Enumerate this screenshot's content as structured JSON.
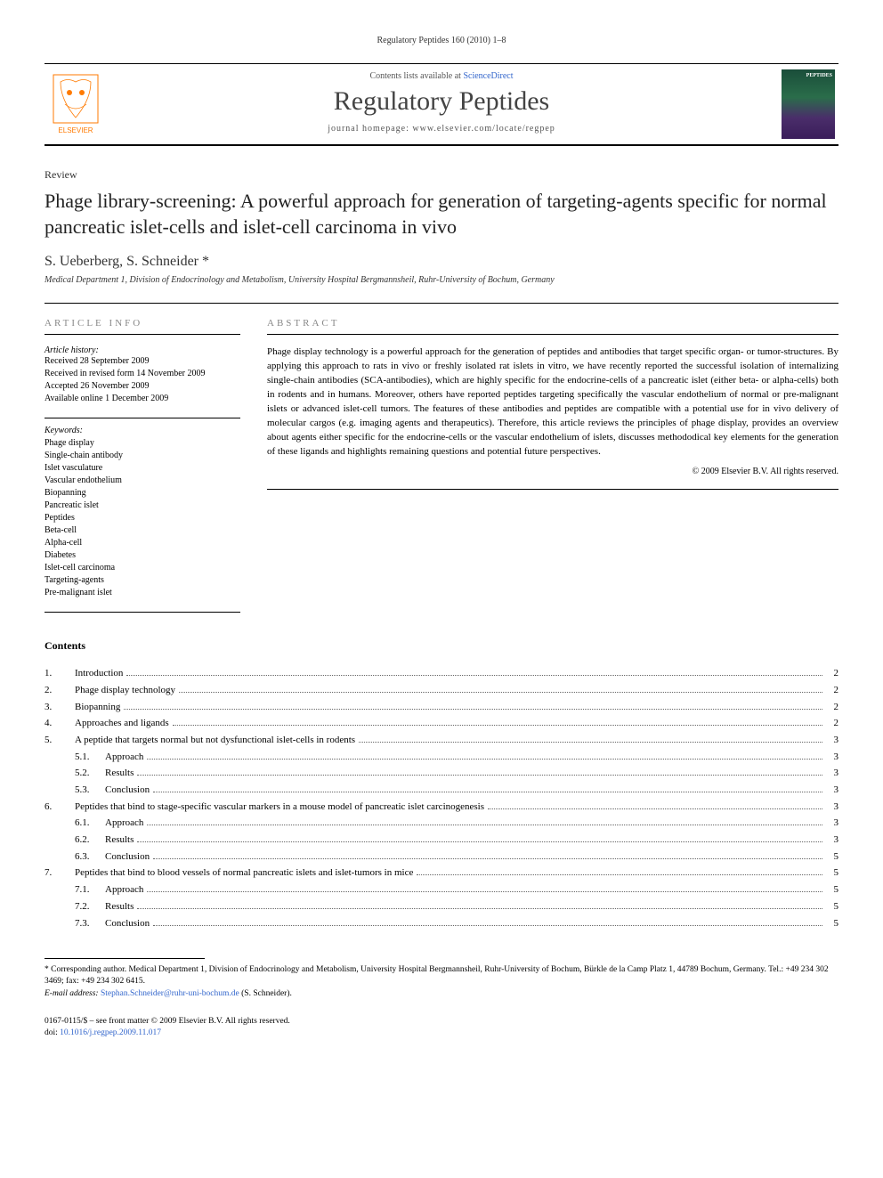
{
  "running_header": "Regulatory Peptides 160 (2010) 1–8",
  "header": {
    "contents_prefix": "Contents lists available at ",
    "contents_link": "ScienceDirect",
    "journal_name": "Regulatory Peptides",
    "homepage_prefix": "journal homepage: ",
    "homepage_url": "www.elsevier.com/locate/regpep",
    "publisher_label": "ELSEVIER",
    "cover_label": "PEPTIDES"
  },
  "article": {
    "type": "Review",
    "title": "Phage library-screening: A powerful approach for generation of targeting-agents specific for normal pancreatic islet-cells and islet-cell carcinoma in vivo",
    "authors": "S. Ueberberg, S. Schneider *",
    "affiliation": "Medical Department 1, Division of Endocrinology and Metabolism, University Hospital Bergmannsheil, Ruhr-University of Bochum, Germany"
  },
  "info": {
    "heading": "ARTICLE INFO",
    "history_label": "Article history:",
    "history": [
      "Received 28 September 2009",
      "Received in revised form 14 November 2009",
      "Accepted 26 November 2009",
      "Available online 1 December 2009"
    ],
    "keywords_label": "Keywords:",
    "keywords": [
      "Phage display",
      "Single-chain antibody",
      "Islet vasculature",
      "Vascular endothelium",
      "Biopanning",
      "Pancreatic islet",
      "Peptides",
      "Beta-cell",
      "Alpha-cell",
      "Diabetes",
      "Islet-cell carcinoma",
      "Targeting-agents",
      "Pre-malignant islet"
    ]
  },
  "abstract": {
    "heading": "ABSTRACT",
    "text": "Phage display technology is a powerful approach for the generation of peptides and antibodies that target specific organ- or tumor-structures. By applying this approach to rats in vivo or freshly isolated rat islets in vitro, we have recently reported the successful isolation of internalizing single-chain antibodies (SCA-antibodies), which are highly specific for the endocrine-cells of a pancreatic islet (either beta- or alpha-cells) both in rodents and in humans. Moreover, others have reported peptides targeting specifically the vascular endothelium of normal or pre-malignant islets or advanced islet-cell tumors. The features of these antibodies and peptides are compatible with a potential use for in vivo delivery of molecular cargos (e.g. imaging agents and therapeutics). Therefore, this article reviews the principles of phage display, provides an overview about agents either specific for the endocrine-cells or the vascular endothelium of islets, discusses methododical key elements for the generation of these ligands and highlights remaining questions and potential future perspectives.",
    "copyright": "© 2009 Elsevier B.V. All rights reserved."
  },
  "contents": {
    "heading": "Contents",
    "items": [
      {
        "num": "1.",
        "title": "Introduction",
        "page": "2",
        "sub": false
      },
      {
        "num": "2.",
        "title": "Phage display technology",
        "page": "2",
        "sub": false
      },
      {
        "num": "3.",
        "title": "Biopanning",
        "page": "2",
        "sub": false
      },
      {
        "num": "4.",
        "title": "Approaches and ligands",
        "page": "2",
        "sub": false
      },
      {
        "num": "5.",
        "title": "A peptide that targets normal but not dysfunctional islet-cells in rodents",
        "page": "3",
        "sub": false
      },
      {
        "num": "5.1.",
        "title": "Approach",
        "page": "3",
        "sub": true
      },
      {
        "num": "5.2.",
        "title": "Results",
        "page": "3",
        "sub": true
      },
      {
        "num": "5.3.",
        "title": "Conclusion",
        "page": "3",
        "sub": true
      },
      {
        "num": "6.",
        "title": "Peptides that bind to stage-specific vascular markers in a mouse model of pancreatic islet carcinogenesis",
        "page": "3",
        "sub": false
      },
      {
        "num": "6.1.",
        "title": "Approach",
        "page": "3",
        "sub": true
      },
      {
        "num": "6.2.",
        "title": "Results",
        "page": "3",
        "sub": true
      },
      {
        "num": "6.3.",
        "title": "Conclusion",
        "page": "5",
        "sub": true
      },
      {
        "num": "7.",
        "title": "Peptides that bind to blood vessels of normal pancreatic islets and islet-tumors in mice",
        "page": "5",
        "sub": false
      },
      {
        "num": "7.1.",
        "title": "Approach",
        "page": "5",
        "sub": true
      },
      {
        "num": "7.2.",
        "title": "Results",
        "page": "5",
        "sub": true
      },
      {
        "num": "7.3.",
        "title": "Conclusion",
        "page": "5",
        "sub": true
      }
    ]
  },
  "footnote": {
    "corresponding": "* Corresponding author. Medical Department 1, Division of Endocrinology and Metabolism, University Hospital Bergmannsheil, Ruhr-University of Bochum, Bürkle de la Camp Platz 1, 44789 Bochum, Germany. Tel.: +49 234 302 3469; fax: +49 234 302 6415.",
    "email_label": "E-mail address: ",
    "email": "Stephan.Schneider@ruhr-uni-bochum.de",
    "email_suffix": " (S. Schneider)."
  },
  "bottom": {
    "issn_line": "0167-0115/$ – see front matter © 2009 Elsevier B.V. All rights reserved.",
    "doi_prefix": "doi:",
    "doi": "10.1016/j.regpep.2009.11.017"
  },
  "colors": {
    "text": "#000000",
    "muted": "#888888",
    "link": "#3366cc",
    "elsevier_orange": "#ff7a00",
    "rule": "#000000"
  }
}
